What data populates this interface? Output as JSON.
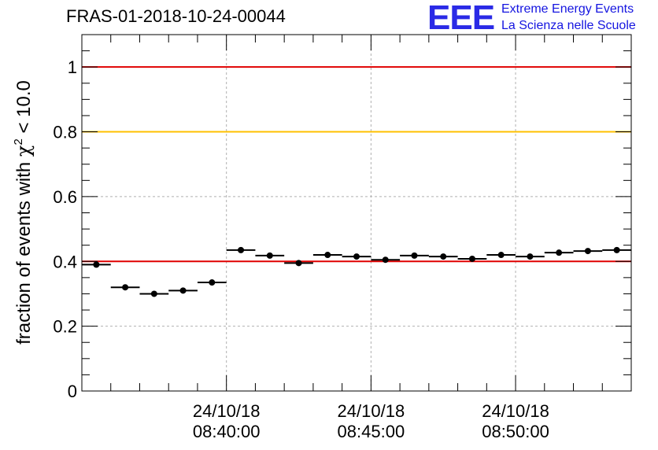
{
  "title": "FRAS-01-2018-10-24-00044",
  "logo": {
    "mark": "EEE",
    "line1": "Extreme Energy Events",
    "line2": "La Scienza nelle Scuole",
    "color": "#2a2ae6"
  },
  "chart_data": {
    "type": "scatter",
    "title": "FRAS-01-2018-10-24-00044",
    "ylabel_prefix": "fraction of events with ",
    "ylabel_symbol": "χ",
    "ylabel_sup": "2",
    "ylabel_suffix": " < 10.0",
    "ylim": [
      0,
      1.1
    ],
    "yticks": [
      "0",
      "0.2",
      "0.4",
      "0.6",
      "0.8",
      "1"
    ],
    "ytick_values": [
      0,
      0.2,
      0.4,
      0.6,
      0.8,
      1.0
    ],
    "xticks": [
      {
        "time": "08:40:00",
        "date": "24/10/18"
      },
      {
        "time": "08:45:00",
        "date": "24/10/18"
      },
      {
        "time": "08:50:00",
        "date": "24/10/18"
      }
    ],
    "xlim": [
      "08:35:00",
      "08:54:00"
    ],
    "bin_width_seconds": 60,
    "grid": true,
    "reference_lines": [
      {
        "y": 1.0,
        "color": "#e00000"
      },
      {
        "y": 0.8,
        "color": "#ffc000"
      },
      {
        "y": 0.4,
        "color": "#e00000"
      }
    ],
    "points": [
      {
        "x": "08:35:30",
        "y": 0.39
      },
      {
        "x": "08:36:30",
        "y": 0.32
      },
      {
        "x": "08:37:30",
        "y": 0.3
      },
      {
        "x": "08:38:30",
        "y": 0.31
      },
      {
        "x": "08:39:30",
        "y": 0.335
      },
      {
        "x": "08:40:30",
        "y": 0.435
      },
      {
        "x": "08:41:30",
        "y": 0.418
      },
      {
        "x": "08:42:30",
        "y": 0.395
      },
      {
        "x": "08:43:30",
        "y": 0.42
      },
      {
        "x": "08:44:30",
        "y": 0.415
      },
      {
        "x": "08:45:30",
        "y": 0.405
      },
      {
        "x": "08:46:30",
        "y": 0.418
      },
      {
        "x": "08:47:30",
        "y": 0.415
      },
      {
        "x": "08:48:30",
        "y": 0.408
      },
      {
        "x": "08:49:30",
        "y": 0.42
      },
      {
        "x": "08:50:30",
        "y": 0.415
      },
      {
        "x": "08:51:30",
        "y": 0.427
      },
      {
        "x": "08:52:30",
        "y": 0.432
      },
      {
        "x": "08:53:30",
        "y": 0.435
      }
    ]
  }
}
